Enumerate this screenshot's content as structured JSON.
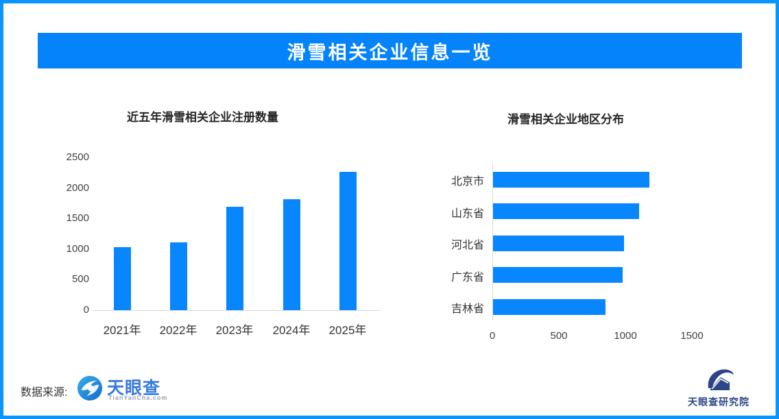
{
  "page": {
    "title": "滑雪相关企业信息一览"
  },
  "colors": {
    "border_blue": "#0995FC",
    "banner_blue": "#0483FB",
    "bar_blue": "#0786FE",
    "axis_gray": "#D9D9D9",
    "tick_text": "#404040",
    "category_text": "#333333",
    "title_text": "#262626",
    "tyc_logo_blue": "#3779DE",
    "institute_navy": "#2B4687"
  },
  "chart_data": [
    {
      "type": "bar",
      "title": "近五年滑雪相关企业注册数量",
      "categories": [
        "2021年",
        "2022年",
        "2023年",
        "2024年",
        "2025年"
      ],
      "values": [
        1030,
        1105,
        1695,
        1820,
        2260
      ],
      "xlabel": "",
      "ylabel": "",
      "ylim": [
        0,
        2500
      ],
      "yticks": [
        0,
        500,
        1000,
        1500,
        2000,
        2500
      ],
      "grid": false,
      "legend": null
    },
    {
      "type": "bar-horizontal",
      "title": "滑雪相关企业地区分布",
      "categories": [
        "北京市",
        "山东省",
        "河北省",
        "广东省",
        "吉林省"
      ],
      "values": [
        1175,
        1100,
        985,
        975,
        845
      ],
      "xlabel": "",
      "ylabel": "",
      "xlim": [
        0,
        1500
      ],
      "xticks": [
        0,
        500,
        1000,
        1500
      ],
      "grid": false,
      "legend": null
    }
  ],
  "footer": {
    "source_label": "数据来源:",
    "tianyancha_name": "天眼查",
    "tianyancha_url": "TianYanCha.com",
    "institute_name": "天眼查研究院"
  }
}
